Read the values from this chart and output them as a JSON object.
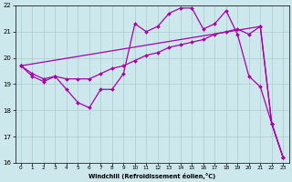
{
  "xlabel": "Windchill (Refroidissement éolien,°C)",
  "background_color": "#cce8ed",
  "grid_color": "#aacccc",
  "line_color": "#aa00aa",
  "ylim": [
    16,
    22
  ],
  "xlim": [
    -0.5,
    23.5
  ],
  "yticks": [
    16,
    17,
    18,
    19,
    20,
    21,
    22
  ],
  "xticks": [
    0,
    1,
    2,
    3,
    4,
    5,
    6,
    7,
    8,
    9,
    10,
    11,
    12,
    13,
    14,
    15,
    16,
    17,
    18,
    19,
    20,
    21,
    22,
    23
  ],
  "curve1_x": [
    0,
    1,
    2,
    3,
    4,
    5,
    6,
    7,
    8,
    9,
    10,
    11,
    12,
    13,
    14,
    15,
    16,
    17,
    18,
    19,
    20,
    21,
    22,
    23
  ],
  "curve1_y": [
    19.7,
    19.3,
    19.1,
    19.3,
    18.8,
    18.3,
    18.1,
    18.8,
    18.8,
    19.4,
    21.3,
    21.0,
    21.2,
    21.7,
    21.9,
    21.9,
    21.1,
    21.3,
    21.8,
    20.9,
    19.3,
    18.9,
    17.5,
    16.2
  ],
  "curve2_x": [
    0,
    1,
    2,
    3,
    4,
    5,
    6,
    7,
    8,
    9,
    10,
    11,
    12,
    13,
    14,
    15,
    16,
    17,
    18,
    19,
    20,
    21,
    22,
    23
  ],
  "curve2_y": [
    19.7,
    19.4,
    19.2,
    19.3,
    19.2,
    19.2,
    19.2,
    19.4,
    19.6,
    19.7,
    19.9,
    20.1,
    20.2,
    20.4,
    20.5,
    20.6,
    20.7,
    20.9,
    21.0,
    21.1,
    20.9,
    21.2,
    17.5,
    16.2
  ],
  "curve3_x": [
    0,
    21,
    22,
    23
  ],
  "curve3_y": [
    19.7,
    21.2,
    17.5,
    16.2
  ]
}
